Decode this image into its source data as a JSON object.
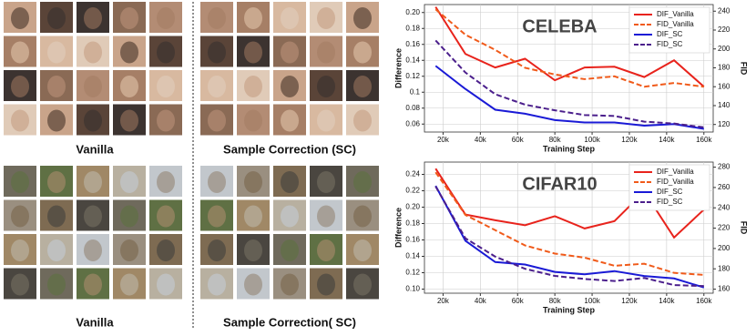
{
  "captions": [
    "Vanilla",
    "Sample Correction (SC)",
    "Vanilla",
    "Sample Correction( SC)"
  ],
  "chart_data": [
    {
      "type": "line",
      "title": "CELEBA",
      "xlabel": "Training Step",
      "ylabel": "Difference",
      "y2label": "FID",
      "x": [
        16000,
        32000,
        48000,
        64000,
        80000,
        96000,
        112000,
        128000,
        144000,
        160000
      ],
      "xlim": [
        10000,
        165000
      ],
      "xticks": [
        {
          "value": 20000,
          "label": "20k"
        },
        {
          "value": 40000,
          "label": "40k"
        },
        {
          "value": 60000,
          "label": "60k"
        },
        {
          "value": 80000,
          "label": "80k"
        },
        {
          "value": 100000,
          "label": "100k"
        },
        {
          "value": 120000,
          "label": "120k"
        },
        {
          "value": 140000,
          "label": "140k"
        },
        {
          "value": 160000,
          "label": "160k"
        }
      ],
      "ylim": [
        0.05,
        0.21
      ],
      "yticks": [
        {
          "value": 0.06,
          "label": "0.06"
        },
        {
          "value": 0.08,
          "label": "0.08"
        },
        0.1,
        0.12,
        0.14,
        0.16,
        0.18,
        {
          "value": 0.2,
          "label": "0.20"
        }
      ],
      "y2lim": [
        112,
        247
      ],
      "y2ticks": [
        120,
        140,
        160,
        180,
        200,
        220,
        240
      ],
      "grid": true,
      "legend": "upper right",
      "series": [
        {
          "name": "DIF_Vanilla",
          "color": "#e8231c",
          "linestyle": "solid",
          "values": [
            0.207,
            0.148,
            0.131,
            0.142,
            0.115,
            0.131,
            0.132,
            0.119,
            0.14,
            0.107
          ]
        },
        {
          "name": "FID_Vanilla",
          "color": "#f05a1a",
          "linestyle": "dashed",
          "axis": "y2",
          "values": [
            242,
            215,
            199,
            180,
            173,
            168,
            171,
            160,
            164,
            160
          ]
        },
        {
          "name": "DIF_SC",
          "color": "#1a1ad6",
          "linestyle": "solid",
          "values": [
            0.133,
            0.104,
            0.078,
            0.073,
            0.065,
            0.062,
            0.062,
            0.058,
            0.06,
            0.054
          ]
        },
        {
          "name": "FID_SC",
          "color": "#4b1f8c",
          "linestyle": "dashed",
          "axis": "y2",
          "values": [
            209,
            175,
            152,
            141,
            135,
            130,
            129,
            123,
            121,
            117
          ]
        }
      ]
    },
    {
      "type": "line",
      "title": "CIFAR10",
      "xlabel": "Training Step",
      "ylabel": "Difference",
      "y2label": "FID",
      "x": [
        16000,
        32000,
        48000,
        64000,
        80000,
        96000,
        112000,
        128000,
        144000,
        160000
      ],
      "xlim": [
        10000,
        165000
      ],
      "xticks": [
        {
          "value": 20000,
          "label": "20k"
        },
        {
          "value": 40000,
          "label": "40k"
        },
        {
          "value": 60000,
          "label": "60k"
        },
        {
          "value": 80000,
          "label": "80k"
        },
        {
          "value": 100000,
          "label": "100k"
        },
        {
          "value": 120000,
          "label": "120k"
        },
        {
          "value": 140000,
          "label": "140k"
        },
        {
          "value": 160000,
          "label": "160k"
        }
      ],
      "ylim": [
        0.095,
        0.255
      ],
      "yticks": [
        {
          "value": 0.1,
          "label": "0.10"
        },
        0.12,
        0.14,
        0.16,
        0.18,
        {
          "value": 0.2,
          "label": "0.20"
        },
        0.22,
        0.24
      ],
      "y2lim": [
        156,
        285
      ],
      "y2ticks": [
        160,
        180,
        200,
        220,
        240,
        260,
        280
      ],
      "grid": true,
      "legend": "upper right",
      "series": [
        {
          "name": "DIF_Vanilla",
          "color": "#e8231c",
          "linestyle": "solid",
          "values": [
            0.247,
            0.191,
            0.184,
            0.178,
            0.189,
            0.174,
            0.183,
            0.219,
            0.163,
            0.197
          ]
        },
        {
          "name": "FID_Vanilla",
          "color": "#f05a1a",
          "linestyle": "dashed",
          "axis": "y2",
          "values": [
            275,
            233,
            218,
            203,
            195,
            191,
            183,
            185,
            176,
            174
          ]
        },
        {
          "name": "DIF_SC",
          "color": "#1a1ad6",
          "linestyle": "solid",
          "values": [
            0.226,
            0.159,
            0.133,
            0.13,
            0.121,
            0.118,
            0.122,
            0.116,
            0.113,
            0.102
          ]
        },
        {
          "name": "FID_SC",
          "color": "#4b1f8c",
          "linestyle": "dashed",
          "axis": "y2",
          "values": [
            261,
            210,
            192,
            180,
            173,
            170,
            168,
            171,
            164,
            163
          ]
        }
      ]
    }
  ]
}
